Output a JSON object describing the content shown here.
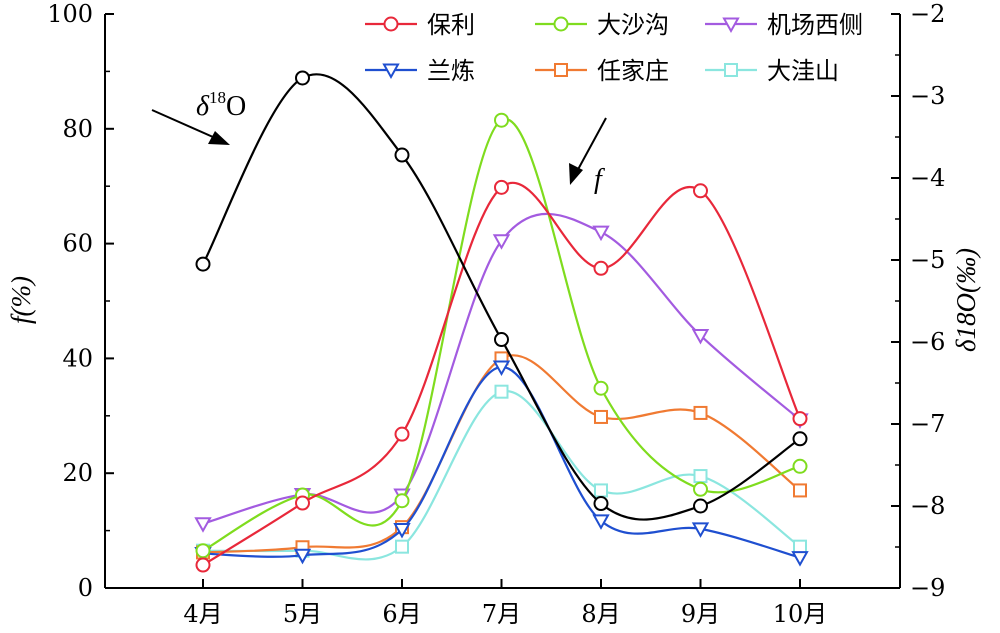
{
  "chart_data": {
    "type": "line",
    "categories": [
      "4月",
      "5月",
      "6月",
      "7月",
      "8月",
      "9月",
      "10月"
    ],
    "y_left": {
      "label": "f(%)",
      "ylim": [
        0,
        100
      ],
      "ticks": [
        0,
        20,
        40,
        60,
        80,
        100
      ]
    },
    "y_right": {
      "label": "δ18O(‰)",
      "ylim": [
        -9,
        -2
      ],
      "ticks": [
        "−9",
        "−8",
        "−7",
        "−6",
        "−5",
        "−4",
        "−3",
        "−2"
      ]
    },
    "legend_placement": "top-right",
    "series": [
      {
        "name": "保利",
        "axis": "left",
        "marker": "circle",
        "color": "#e8283a",
        "values": [
          4,
          14.8,
          26.8,
          69.8,
          55.7,
          69.2,
          29.5
        ]
      },
      {
        "name": "大沙沟",
        "axis": "left",
        "marker": "circle",
        "color": "#7fdc1e",
        "values": [
          6.5,
          16.2,
          15.2,
          81.5,
          34.8,
          17.2,
          21.2
        ]
      },
      {
        "name": "机场西侧",
        "axis": "left",
        "marker": "triangle-down",
        "color": "#a35be0",
        "values": [
          11.2,
          16.3,
          16.2,
          60.5,
          62,
          44,
          29.3
        ]
      },
      {
        "name": "兰炼",
        "axis": "left",
        "marker": "triangle-down",
        "color": "#1f4fd0",
        "values": [
          6,
          5.7,
          10.2,
          38.5,
          11.7,
          10.3,
          5.3
        ]
      },
      {
        "name": "任家庄",
        "axis": "left",
        "marker": "square",
        "color": "#f07a32",
        "values": [
          6.2,
          7.1,
          10.6,
          40,
          29.8,
          30.5,
          17
        ]
      },
      {
        "name": "大洼山",
        "axis": "left",
        "marker": "square",
        "color": "#8be6df",
        "values": [
          6.5,
          6.5,
          7.2,
          34.2,
          17,
          19.5,
          7.2
        ]
      },
      {
        "name": "δ18O",
        "axis": "right",
        "marker": "circle",
        "color": "#000000",
        "values": [
          -5.05,
          -2.78,
          -3.72,
          -5.97,
          -7.97,
          -8.0,
          -7.18
        ]
      }
    ],
    "annotations": [
      {
        "text_main": "δ",
        "text_sup": "18",
        "text_tail": "O",
        "target_series": "δ18O"
      },
      {
        "text_main": "f",
        "target_series": "f"
      }
    ]
  }
}
